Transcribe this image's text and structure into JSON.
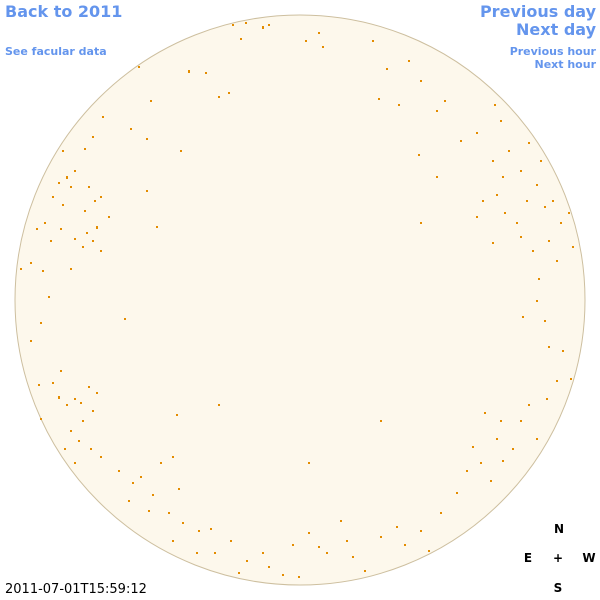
{
  "nav": {
    "back": "Back to 2011",
    "facular": "See facular data",
    "previous_day": "Previous day",
    "next_day": "Next day",
    "previous_hour": "Previous hour",
    "next_hour": "Next hour"
  },
  "compass": {
    "north": "N",
    "east": "E",
    "center": "+",
    "west": "W",
    "south": "S"
  },
  "timestamp": "2011-07-01T15:59:12"
}
